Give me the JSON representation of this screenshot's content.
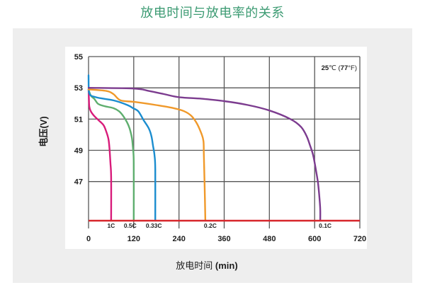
{
  "colors": {
    "title": "#3d9b73"
  },
  "chart_data": {
    "type": "line",
    "title": "放电时间与放电率的关系",
    "xlabel": "放电时间 (min)",
    "ylabel": "电压(V)",
    "xlim": [
      0,
      720
    ],
    "ylim": [
      44,
      55
    ],
    "xticks": [
      0,
      120,
      240,
      360,
      480,
      600,
      720
    ],
    "yticks": [
      55,
      53,
      51,
      49,
      47
    ],
    "grid": true,
    "annotation": "25℃ (77°F)",
    "reference_lines": [
      {
        "y": 44.5,
        "color": "#d7262b"
      }
    ],
    "series": [
      {
        "name": "1C",
        "color": "#d81b7a",
        "x": [
          0,
          1,
          2,
          6,
          15,
          28,
          40,
          47,
          53,
          56,
          58,
          60,
          60
        ],
        "y": [
          52.9,
          52.3,
          51.8,
          51.5,
          51.2,
          50.9,
          50.6,
          50.2,
          49.7,
          49.0,
          48.2,
          47.3,
          44.5
        ]
      },
      {
        "name": "0.5C",
        "color": "#5eae6e",
        "x": [
          0,
          6,
          15,
          24,
          32,
          47,
          66,
          81,
          92,
          102,
          109,
          115,
          118,
          120,
          120
        ],
        "y": [
          52.9,
          52.5,
          52.3,
          52.0,
          51.9,
          51.8,
          51.7,
          51.5,
          51.2,
          50.8,
          50.4,
          49.8,
          49.1,
          48.2,
          44.5
        ]
      },
      {
        "name": "0.33C",
        "color": "#1b8dcf",
        "x": [
          0,
          1,
          19,
          66,
          103,
          118,
          132,
          147,
          160,
          167,
          171,
          175,
          177,
          177
        ],
        "y": [
          53.8,
          52.7,
          52.4,
          52.2,
          51.9,
          51.7,
          51.5,
          50.9,
          50.4,
          49.9,
          49.3,
          48.7,
          47.8,
          44.5
        ]
      },
      {
        "name": "0.2C",
        "color": "#f0992a",
        "x": [
          0,
          47,
          66,
          85,
          122,
          179,
          226,
          254,
          273,
          288,
          299,
          305,
          306,
          308,
          310
        ],
        "y": [
          52.9,
          52.8,
          52.6,
          52.2,
          52.1,
          51.9,
          51.7,
          51.5,
          51.2,
          50.7,
          50.1,
          49.6,
          48.7,
          46.9,
          44.5
        ]
      },
      {
        "name": "0.1C",
        "color": "#7c3c8f",
        "x": [
          0,
          122,
          160,
          200,
          240,
          300,
          360,
          423,
          480,
          536,
          564,
          579,
          588,
          596,
          603,
          609,
          613,
          615,
          615
        ],
        "y": [
          53.0,
          52.95,
          52.8,
          52.6,
          52.4,
          52.3,
          52.15,
          51.9,
          51.55,
          51.0,
          50.5,
          49.9,
          49.3,
          48.7,
          47.8,
          46.9,
          45.9,
          45.2,
          44.5
        ]
      }
    ]
  }
}
